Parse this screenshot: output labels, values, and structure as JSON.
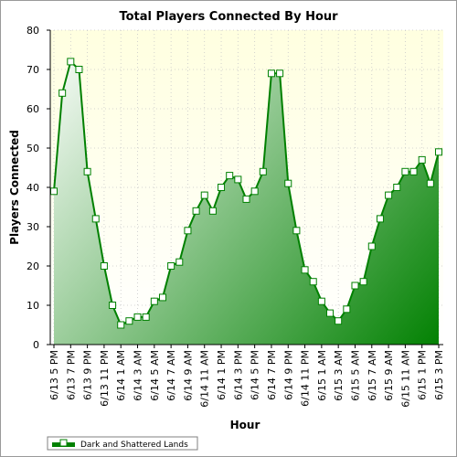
{
  "chart_data": {
    "type": "area",
    "title": "Total Players Connected By Hour",
    "xlabel": "Hour",
    "ylabel": "Players Connected",
    "ylim": [
      0,
      80
    ],
    "yticks": [
      0,
      10,
      20,
      30,
      40,
      50,
      60,
      70,
      80
    ],
    "grid": true,
    "legend_position": "bottom-left",
    "colors": {
      "plot_top": "#ffffe0",
      "plot_bottom": "#ffffff",
      "fill_light": "#ffffff",
      "fill_dark": "#008000",
      "line": "#008000",
      "marker_fill": "#ffffff"
    },
    "x_tick_labels": [
      "6/13 5 PM",
      "6/13 7 PM",
      "6/13 9 PM",
      "6/13 11 PM",
      "6/14 1 AM",
      "6/14 3 AM",
      "6/14 5 AM",
      "6/14 7 AM",
      "6/14 9 AM",
      "6/14 11 AM",
      "6/14 1 PM",
      "6/14 3 PM",
      "6/14 5 PM",
      "6/14 7 PM",
      "6/14 9 PM",
      "6/14 11 PM",
      "6/15 1 AM",
      "6/15 3 AM",
      "6/15 5 AM",
      "6/15 7 AM",
      "6/15 9 AM",
      "6/15 11 AM",
      "6/15 1 PM",
      "6/15 3 PM"
    ],
    "series": [
      {
        "name": "Dark and Shattered Lands",
        "values": [
          39,
          64,
          72,
          70,
          44,
          32,
          20,
          10,
          5,
          6,
          7,
          7,
          11,
          12,
          20,
          21,
          29,
          34,
          38,
          34,
          40,
          43,
          42,
          37,
          39,
          44,
          69,
          69,
          41,
          29,
          19,
          16,
          11,
          8,
          6,
          9,
          15,
          16,
          25,
          32,
          38,
          40,
          44,
          44,
          47,
          41,
          49
        ]
      }
    ]
  }
}
